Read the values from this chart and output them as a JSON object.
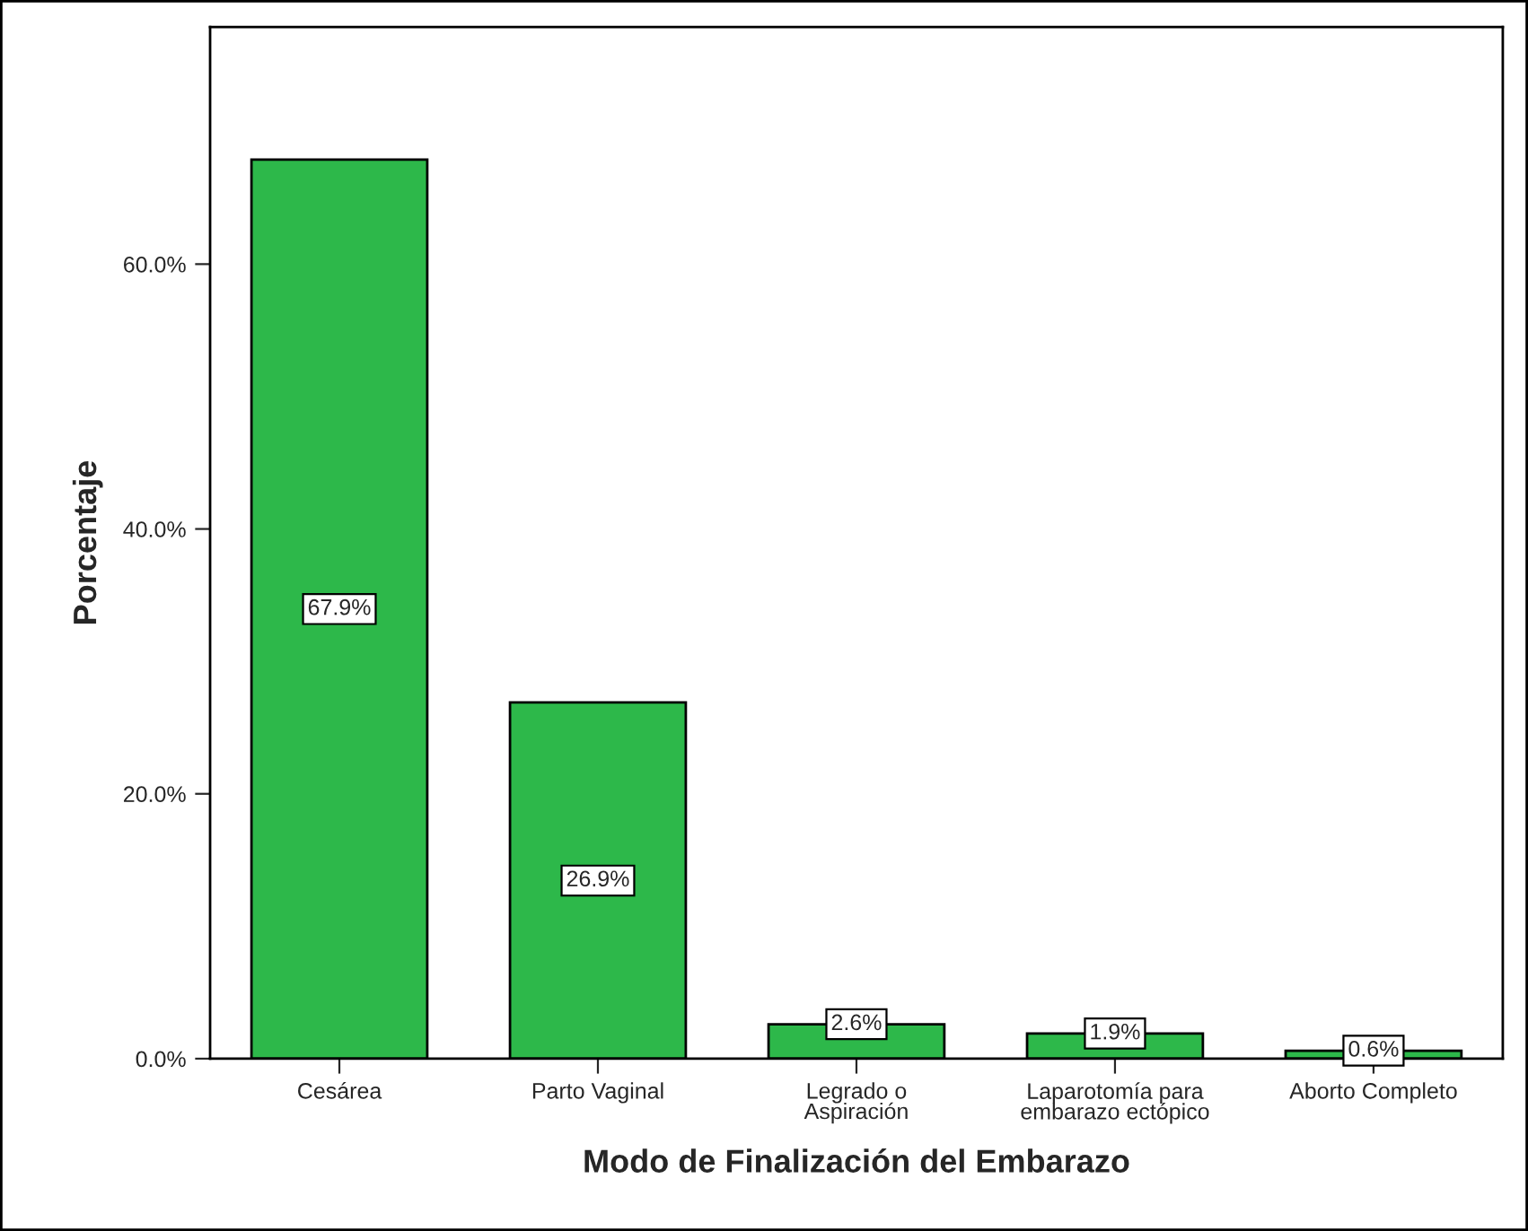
{
  "chart_data": {
    "type": "bar",
    "xlabel": "Modo de Finalización del Embarazo",
    "ylabel": "Porcentaje",
    "categories": [
      "Cesárea",
      "Parto Vaginal",
      "Legrado o\nAspiración",
      "Laparotomía para\nembarazo ectópico",
      "Aborto Completo"
    ],
    "values": [
      67.9,
      26.9,
      2.6,
      1.9,
      0.6
    ],
    "value_labels": [
      "67.9%",
      "26.9%",
      "2.6%",
      "1.9%",
      "0.6%"
    ],
    "color": "#2db84a",
    "ylim": [
      0,
      77.9
    ],
    "yticks": [
      {
        "value": 0,
        "label": "0.0%"
      },
      {
        "value": 20,
        "label": "20.0%"
      },
      {
        "value": 40,
        "label": "40.0%"
      },
      {
        "value": 60,
        "label": "60.0%"
      }
    ],
    "grid": false
  }
}
